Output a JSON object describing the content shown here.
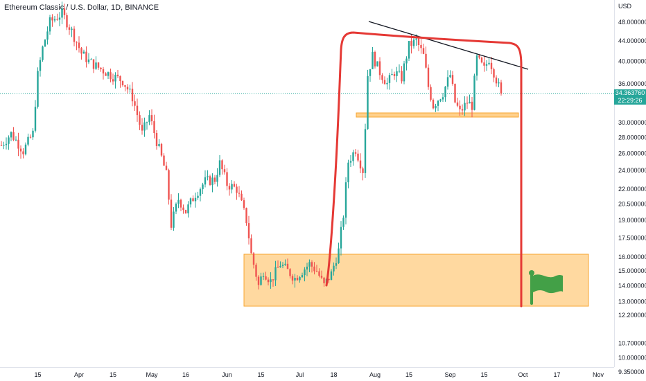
{
  "header": {
    "symbol_title": "Ethereum Classic / U.S. Dollar, 1D, BINANCE"
  },
  "price_axis": {
    "currency": "USD"
  },
  "price_tag": {
    "last_price": "34.363760",
    "countdown": "22:29:26"
  },
  "colors": {
    "up": "#26a69a",
    "down": "#ef5350",
    "zone_fill": "#ffcc80",
    "zone_border": "#f7a531",
    "annotation_red": "#e53935",
    "trendline": "#131722",
    "flag": "#43a047"
  },
  "chart_data": {
    "type": "candlestick",
    "title": "Ethereum Classic / U.S. Dollar, 1D, BINANCE",
    "y_scale": "log",
    "ylim": [
      9.35,
      56
    ],
    "y_ticks": [
      {
        "value": 48,
        "label": "48.000000"
      },
      {
        "value": 44,
        "label": "44.000000"
      },
      {
        "value": 40,
        "label": "40.000000"
      },
      {
        "value": 36,
        "label": "36.000000"
      },
      {
        "value": 30,
        "label": "30.000000"
      },
      {
        "value": 28,
        "label": "28.000000"
      },
      {
        "value": 26,
        "label": "26.000000"
      },
      {
        "value": 24,
        "label": "24.000000"
      },
      {
        "value": 22,
        "label": "22.000000"
      },
      {
        "value": 20.5,
        "label": "20.500000"
      },
      {
        "value": 19,
        "label": "19.000000"
      },
      {
        "value": 17.5,
        "label": "17.500000"
      },
      {
        "value": 16,
        "label": "16.000000"
      },
      {
        "value": 15,
        "label": "15.000000"
      },
      {
        "value": 14,
        "label": "14.000000"
      },
      {
        "value": 13,
        "label": "13.000000"
      },
      {
        "value": 12.2,
        "label": "12.200000"
      },
      {
        "value": 10.7,
        "label": "10.700000"
      },
      {
        "value": 10,
        "label": "10.000000"
      },
      {
        "value": 9.35,
        "label": "9.350000"
      }
    ],
    "x_ticks": [
      {
        "day": 15,
        "label": "15"
      },
      {
        "day": 32,
        "label": "Apr"
      },
      {
        "day": 46,
        "label": "15"
      },
      {
        "day": 62,
        "label": "May"
      },
      {
        "day": 76,
        "label": "16"
      },
      {
        "day": 93,
        "label": "Jun"
      },
      {
        "day": 107,
        "label": "15"
      },
      {
        "day": 123,
        "label": "Jul"
      },
      {
        "day": 137,
        "label": "18"
      },
      {
        "day": 154,
        "label": "Aug"
      },
      {
        "day": 168,
        "label": "15"
      },
      {
        "day": 185,
        "label": "Sep"
      },
      {
        "day": 199,
        "label": "15"
      },
      {
        "day": 215,
        "label": "Oct"
      },
      {
        "day": 229,
        "label": "17"
      },
      {
        "day": 246,
        "label": "Nov"
      }
    ],
    "x_range_days": [
      0,
      253
    ],
    "anchors": [
      {
        "day": 0,
        "close": 27.0
      },
      {
        "day": 4,
        "close": 28.5
      },
      {
        "day": 9,
        "close": 26.3
      },
      {
        "day": 13,
        "close": 28.5
      },
      {
        "day": 15,
        "close": 37.5
      },
      {
        "day": 17,
        "close": 42.5
      },
      {
        "day": 20,
        "close": 48.0
      },
      {
        "day": 25,
        "close": 50.0
      },
      {
        "day": 29,
        "close": 46.0
      },
      {
        "day": 33,
        "close": 41.5
      },
      {
        "day": 36,
        "close": 40.0
      },
      {
        "day": 40,
        "close": 38.8
      },
      {
        "day": 45,
        "close": 37.5
      },
      {
        "day": 50,
        "close": 36.5
      },
      {
        "day": 54,
        "close": 33.8
      },
      {
        "day": 58,
        "close": 28.5
      },
      {
        "day": 61,
        "close": 31.0
      },
      {
        "day": 64,
        "close": 27.5
      },
      {
        "day": 68,
        "close": 23.5
      },
      {
        "day": 70,
        "close": 18.6
      },
      {
        "day": 73,
        "close": 21.0
      },
      {
        "day": 76,
        "close": 19.8
      },
      {
        "day": 80,
        "close": 21.5
      },
      {
        "day": 84,
        "close": 22.8
      },
      {
        "day": 88,
        "close": 23.0
      },
      {
        "day": 90,
        "close": 24.8
      },
      {
        "day": 93,
        "close": 22.5
      },
      {
        "day": 97,
        "close": 22.0
      },
      {
        "day": 101,
        "close": 19.0
      },
      {
        "day": 103,
        "close": 16.2
      },
      {
        "day": 106,
        "close": 14.0
      },
      {
        "day": 108,
        "close": 15.0
      },
      {
        "day": 111,
        "close": 14.3
      },
      {
        "day": 115,
        "close": 15.5
      },
      {
        "day": 118,
        "close": 15.0
      },
      {
        "day": 121,
        "close": 14.5
      },
      {
        "day": 124,
        "close": 15.0
      },
      {
        "day": 127,
        "close": 15.5
      },
      {
        "day": 130,
        "close": 15.0
      },
      {
        "day": 133,
        "close": 14.0
      },
      {
        "day": 136,
        "close": 14.8
      },
      {
        "day": 139,
        "close": 16.5
      },
      {
        "day": 141,
        "close": 19.5
      },
      {
        "day": 143,
        "close": 25.0
      },
      {
        "day": 146,
        "close": 26.5
      },
      {
        "day": 149,
        "close": 24.0
      },
      {
        "day": 150,
        "close": 29.5
      },
      {
        "day": 151,
        "close": 37.5
      },
      {
        "day": 153,
        "close": 41.0
      },
      {
        "day": 156,
        "close": 38.0
      },
      {
        "day": 159,
        "close": 36.0
      },
      {
        "day": 162,
        "close": 38.0
      },
      {
        "day": 165,
        "close": 37.0
      },
      {
        "day": 168,
        "close": 43.0
      },
      {
        "day": 171,
        "close": 44.0
      },
      {
        "day": 174,
        "close": 41.0
      },
      {
        "day": 176,
        "close": 35.5
      },
      {
        "day": 178,
        "close": 32.5
      },
      {
        "day": 182,
        "close": 34.5
      },
      {
        "day": 185,
        "close": 37.5
      },
      {
        "day": 187,
        "close": 33.0
      },
      {
        "day": 189,
        "close": 31.5
      },
      {
        "day": 192,
        "close": 33.0
      },
      {
        "day": 194,
        "close": 32.5
      },
      {
        "day": 196,
        "close": 40.5
      },
      {
        "day": 199,
        "close": 38.5
      },
      {
        "day": 201,
        "close": 40.5
      },
      {
        "day": 203,
        "close": 38.0
      },
      {
        "day": 205,
        "close": 35.5
      },
      {
        "day": 206,
        "close": 34.4
      }
    ]
  }
}
